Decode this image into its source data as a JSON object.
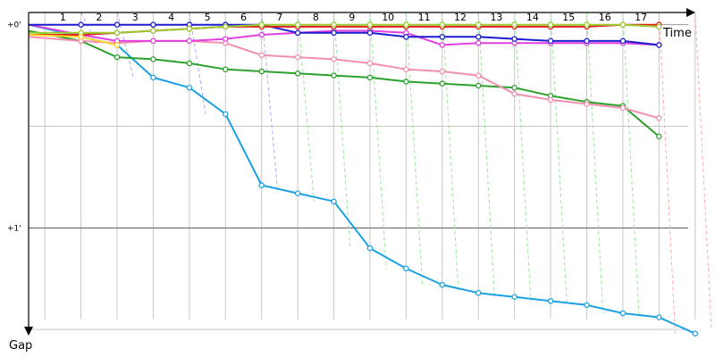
{
  "chart_data": {
    "type": "line",
    "title": "",
    "xlabel": "Time",
    "ylabel": "Gap",
    "x_ticks": [
      "1",
      "2",
      "3",
      "4",
      "5",
      "6",
      "7",
      "8",
      "9",
      "10",
      "11",
      "12",
      "13",
      "14",
      "15",
      "16",
      "17"
    ],
    "x_range": [
      0,
      19
    ],
    "y_ticks": [
      {
        "value": 0,
        "label": "+0'"
      },
      {
        "value": 1,
        "label": "+1'"
      }
    ],
    "y_range": [
      -0.06,
      1.53
    ],
    "y_inverted": true,
    "grid": true,
    "series": [
      {
        "color": "#1ba1e2",
        "x": [
          0,
          1.45,
          2.45,
          3.45,
          4.45,
          5.45,
          6.45,
          7.45,
          8.45,
          9.45,
          10.45,
          11.45,
          12.45,
          13.45,
          14.45,
          15.45,
          16.45,
          17.45,
          18.45
        ],
        "values": [
          0.0,
          0.06,
          0.1,
          0.26,
          0.31,
          0.44,
          0.79,
          0.83,
          0.87,
          1.1,
          1.2,
          1.28,
          1.32,
          1.34,
          1.36,
          1.38,
          1.42,
          1.44,
          1.52
        ]
      },
      {
        "color": "#2ca02c",
        "x": [
          0,
          1.45,
          2.45,
          3.45,
          4.45,
          5.45,
          6.45,
          7.45,
          8.45,
          9.45,
          10.45,
          11.45,
          12.45,
          13.45,
          14.45,
          15.45,
          16.45,
          17.45
        ],
        "values": [
          0.03,
          0.08,
          0.16,
          0.17,
          0.19,
          0.22,
          0.23,
          0.24,
          0.25,
          0.26,
          0.28,
          0.29,
          0.3,
          0.31,
          0.35,
          0.38,
          0.4,
          0.55
        ]
      },
      {
        "color": "#f28fb1",
        "x": [
          0,
          1.45,
          2.45,
          3.45,
          4.45,
          5.45,
          6.45,
          7.45,
          8.45,
          9.45,
          10.45,
          11.45,
          12.45,
          13.45,
          14.45,
          15.45,
          16.45,
          17.45
        ],
        "values": [
          0.06,
          0.08,
          0.09,
          0.08,
          0.08,
          0.09,
          0.15,
          0.16,
          0.17,
          0.19,
          0.22,
          0.23,
          0.25,
          0.34,
          0.37,
          0.39,
          0.41,
          0.46
        ]
      },
      {
        "color": "#e040e0",
        "x": [
          0,
          1.45,
          2.45,
          3.45,
          4.45,
          5.45,
          6.45,
          7.45,
          8.45,
          9.45,
          10.45,
          11.45,
          12.45,
          13.45,
          14.45,
          15.45,
          16.45,
          17.45
        ],
        "values": [
          0.0,
          0.05,
          0.08,
          0.08,
          0.08,
          0.07,
          0.05,
          0.04,
          0.03,
          0.03,
          0.04,
          0.1,
          0.09,
          0.09,
          0.09,
          0.09,
          0.09,
          0.1
        ]
      },
      {
        "color": "#1c1cd0",
        "x": [
          0,
          1.45,
          2.45,
          3.45,
          4.45,
          5.45,
          6.45,
          7.45,
          8.45,
          9.45,
          10.45,
          11.45,
          12.45,
          13.45,
          14.45,
          15.45,
          16.45,
          17.45
        ],
        "values": [
          0.0,
          0.0,
          0.0,
          0.0,
          0.0,
          0.0,
          0.0,
          0.04,
          0.04,
          0.04,
          0.06,
          0.06,
          0.06,
          0.07,
          0.08,
          0.08,
          0.08,
          0.1
        ]
      },
      {
        "color": "#e02020",
        "x": [
          0,
          1.45,
          2.45,
          3.45,
          4.45,
          5.45,
          6.45,
          7.45,
          8.45,
          9.45,
          10.45,
          11.45,
          12.45,
          13.45,
          14.45,
          15.45,
          16.45,
          17.45
        ],
        "values": [
          0.05,
          0.05,
          0.04,
          0.03,
          0.02,
          0.01,
          0.01,
          0.01,
          0.01,
          0.01,
          0.01,
          0.01,
          0.01,
          0.01,
          0.01,
          0.01,
          0.0,
          0.0
        ]
      },
      {
        "color": "#9acd32",
        "x": [
          0,
          1.45,
          2.45,
          3.45,
          4.45,
          5.45,
          6.45,
          7.45,
          8.45,
          9.45,
          10.45,
          11.45,
          12.45,
          13.45,
          14.45,
          15.45,
          16.45,
          17.45
        ],
        "values": [
          0.04,
          0.04,
          0.04,
          0.03,
          0.02,
          0.01,
          0.0,
          0.0,
          0.0,
          0.0,
          0.0,
          0.0,
          0.0,
          0.0,
          0.0,
          0.0,
          0.0,
          0.01
        ]
      },
      {
        "color": "#ffd42a",
        "x": [
          0,
          1.45,
          2.45
        ],
        "values": [
          0.05,
          0.06,
          0.1
        ]
      }
    ],
    "drop_lines": {
      "blue": [
        1.45,
        2.45,
        4.45,
        6.45
      ],
      "green": [
        7.45,
        8.45,
        9.45,
        10.45,
        11.45,
        12.45,
        13.45,
        14.45,
        15.45,
        16.45
      ],
      "pink": [
        17.45,
        18.45
      ]
    },
    "colors": {
      "blue_lap": "#aaaaff",
      "green_lap": "#99e699",
      "pink_lap": "#ffaaaa",
      "grid": "#c8c8c8",
      "axis": "#000000"
    }
  }
}
